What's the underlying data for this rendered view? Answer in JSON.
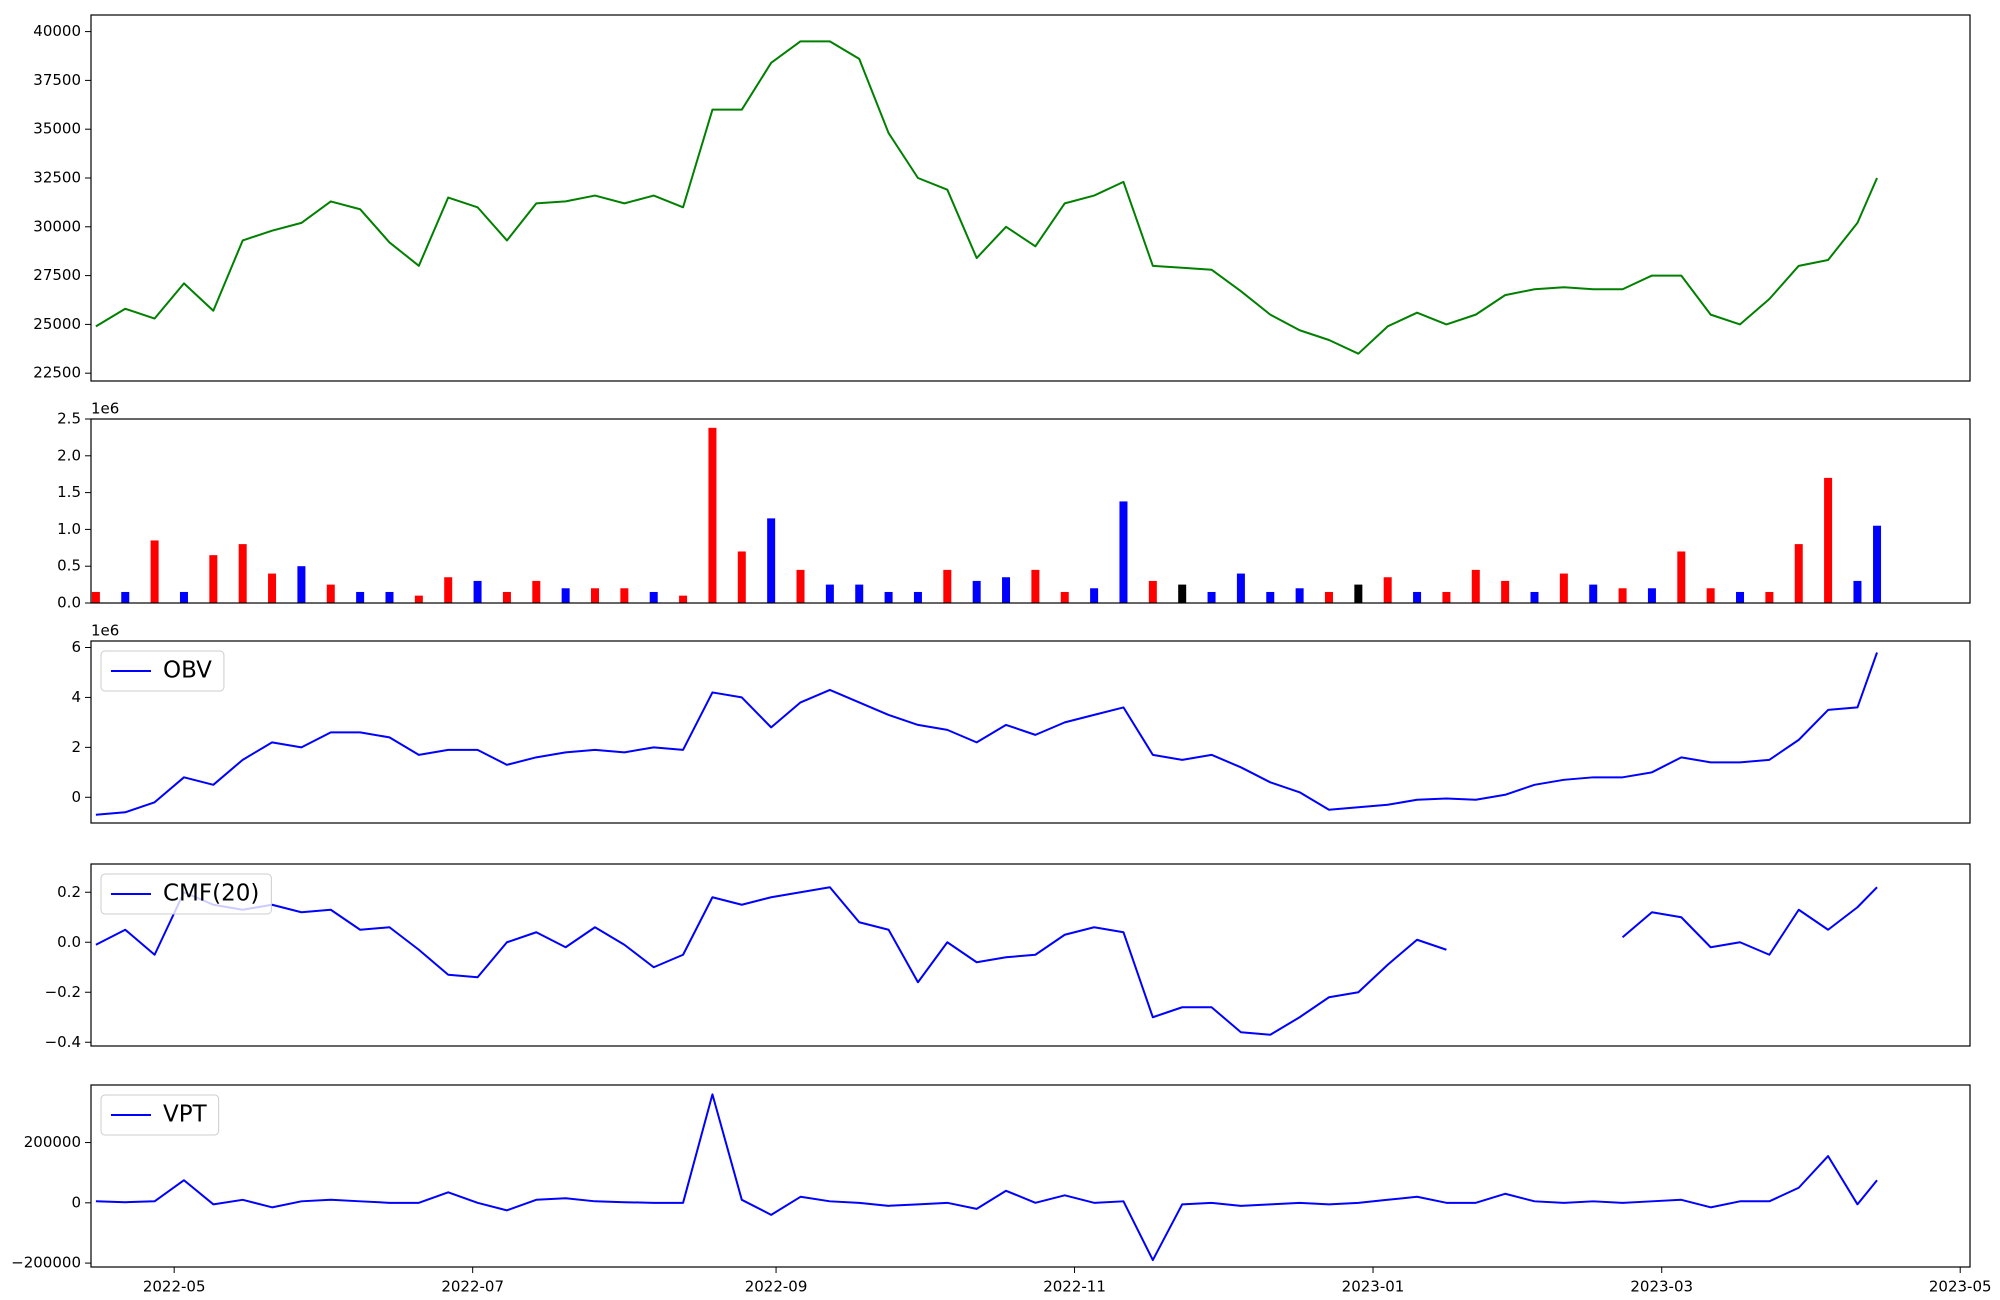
{
  "chart_data": [
    {
      "type": "line",
      "xlim": [
        19096,
        19480
      ],
      "x": [
        19097,
        19103,
        19109,
        19115,
        19121,
        19127,
        19133,
        19139,
        19145,
        19151,
        19157,
        19163,
        19169,
        19175,
        19181,
        19187,
        19193,
        19199,
        19205,
        19211,
        19217,
        19223,
        19229,
        19235,
        19241,
        19247,
        19253,
        19259,
        19265,
        19271,
        19277,
        19283,
        19289,
        19295,
        19301,
        19307,
        19313,
        19319,
        19325,
        19331,
        19337,
        19343,
        19349,
        19355,
        19361,
        19367,
        19373,
        19379,
        19385,
        19391,
        19397,
        19403,
        19409,
        19415,
        19421,
        19427,
        19433,
        19439,
        19445,
        19451,
        19457,
        19461
      ],
      "ylim": [
        22100,
        40850
      ],
      "yticks": [
        22500,
        25000,
        27500,
        30000,
        32500,
        35000,
        37500,
        40000
      ],
      "series": [
        {
          "color": "#008000",
          "values": [
            24900,
            25800,
            25300,
            27100,
            25700,
            29300,
            29800,
            30200,
            31300,
            30900,
            29200,
            28000,
            31500,
            31000,
            29300,
            31200,
            31300,
            31600,
            31200,
            31600,
            31000,
            36000,
            36000,
            38400,
            39500,
            39500,
            38600,
            34800,
            32500,
            31900,
            28400,
            30000,
            29000,
            31200,
            31600,
            32300,
            28000,
            27900,
            27800,
            26700,
            25500,
            24700,
            24200,
            23500,
            24900,
            25600,
            25000,
            25500,
            26500,
            26800,
            26900,
            26800,
            26800,
            27500,
            27500,
            25500,
            25000,
            26300,
            28000,
            28300,
            30200,
            32500
          ]
        }
      ]
    },
    {
      "type": "bar",
      "xlim": [
        19096,
        19480
      ],
      "x": [
        19097,
        19103,
        19109,
        19115,
        19121,
        19127,
        19133,
        19139,
        19145,
        19151,
        19157,
        19163,
        19169,
        19175,
        19181,
        19187,
        19193,
        19199,
        19205,
        19211,
        19217,
        19223,
        19229,
        19235,
        19241,
        19247,
        19253,
        19259,
        19265,
        19271,
        19277,
        19283,
        19289,
        19295,
        19301,
        19307,
        19313,
        19319,
        19325,
        19331,
        19337,
        19343,
        19349,
        19355,
        19361,
        19367,
        19373,
        19379,
        19385,
        19391,
        19397,
        19403,
        19409,
        19415,
        19421,
        19427,
        19433,
        19439,
        19445,
        19451,
        19457,
        19461
      ],
      "ylim": [
        0,
        2.5
      ],
      "yticks": [
        {
          "value": 0,
          "label": "0.0"
        },
        0.5,
        {
          "value": 1,
          "label": "1.0"
        },
        1.5,
        {
          "value": 2,
          "label": "2.0"
        },
        2.5
      ],
      "y_offset_label": "1e6",
      "series": [
        {
          "values": [
            0.15,
            0.15,
            0.85,
            0.15,
            0.65,
            0.8,
            0.4,
            0.5,
            0.25,
            0.15,
            0.15,
            0.1,
            0.35,
            0.3,
            0.15,
            0.3,
            0.2,
            0.2,
            0.2,
            0.15,
            0.1,
            2.38,
            0.7,
            1.15,
            0.45,
            0.25,
            0.25,
            0.15,
            0.15,
            0.45,
            0.3,
            0.35,
            0.45,
            0.15,
            0.2,
            1.38,
            0.3,
            0.25,
            0.15,
            0.4,
            0.15,
            0.2,
            0.15,
            0.25,
            0.35,
            0.15,
            0.15,
            0.45,
            0.3,
            0.15,
            0.4,
            0.25,
            0.2,
            0.2,
            0.7,
            0.2,
            0.15,
            0.15,
            0.8,
            1.7,
            0.3,
            1.05
          ],
          "colors": [
            "#ff0000",
            "#0000ff",
            "#ff0000",
            "#0000ff",
            "#ff0000",
            "#ff0000",
            "#ff0000",
            "#0000ff",
            "#ff0000",
            "#0000ff",
            "#0000ff",
            "#ff0000",
            "#ff0000",
            "#0000ff",
            "#ff0000",
            "#ff0000",
            "#0000ff",
            "#ff0000",
            "#ff0000",
            "#0000ff",
            "#ff0000",
            "#ff0000",
            "#ff0000",
            "#0000ff",
            "#ff0000",
            "#0000ff",
            "#0000ff",
            "#0000ff",
            "#0000ff",
            "#ff0000",
            "#0000ff",
            "#0000ff",
            "#ff0000",
            "#ff0000",
            "#0000ff",
            "#0000ff",
            "#ff0000",
            "#000000",
            "#0000ff",
            "#0000ff",
            "#0000ff",
            "#0000ff",
            "#ff0000",
            "#000000",
            "#ff0000",
            "#0000ff",
            "#ff0000",
            "#ff0000",
            "#ff0000",
            "#0000ff",
            "#ff0000",
            "#0000ff",
            "#ff0000",
            "#0000ff",
            "#ff0000",
            "#ff0000",
            "#0000ff",
            "#ff0000",
            "#ff0000",
            "#ff0000",
            "#0000ff",
            "#0000ff"
          ]
        }
      ]
    },
    {
      "type": "line",
      "xlim": [
        19096,
        19480
      ],
      "x": [
        19097,
        19103,
        19109,
        19115,
        19121,
        19127,
        19133,
        19139,
        19145,
        19151,
        19157,
        19163,
        19169,
        19175,
        19181,
        19187,
        19193,
        19199,
        19205,
        19211,
        19217,
        19223,
        19229,
        19235,
        19241,
        19247,
        19253,
        19259,
        19265,
        19271,
        19277,
        19283,
        19289,
        19295,
        19301,
        19307,
        19313,
        19319,
        19325,
        19331,
        19337,
        19343,
        19349,
        19355,
        19361,
        19367,
        19373,
        19379,
        19385,
        19391,
        19397,
        19403,
        19409,
        19415,
        19421,
        19427,
        19433,
        19439,
        19445,
        19451,
        19457,
        19461
      ],
      "ylim": [
        -1.03,
        6.26
      ],
      "yticks": [
        0,
        2,
        4,
        6
      ],
      "y_offset_label": "1e6",
      "legend": "upper left",
      "series": [
        {
          "name": "OBV",
          "color": "#0000ff",
          "values": [
            -0.7,
            -0.6,
            -0.2,
            0.8,
            0.5,
            1.5,
            2.2,
            2.0,
            2.6,
            2.6,
            2.4,
            1.7,
            1.9,
            1.9,
            1.3,
            1.6,
            1.8,
            1.9,
            1.8,
            2.0,
            1.9,
            4.2,
            4.0,
            2.8,
            3.8,
            4.3,
            3.8,
            3.3,
            2.9,
            2.7,
            2.2,
            2.9,
            2.5,
            3.0,
            3.3,
            3.6,
            1.7,
            1.5,
            1.7,
            1.2,
            0.6,
            0.2,
            -0.5,
            -0.4,
            -0.3,
            -0.1,
            -0.05,
            -0.1,
            0.1,
            0.5,
            0.7,
            0.8,
            0.8,
            1.0,
            1.6,
            1.4,
            1.4,
            1.5,
            2.3,
            3.5,
            3.6,
            5.8
          ]
        }
      ]
    },
    {
      "type": "line",
      "xlim": [
        19096,
        19480
      ],
      "x": [
        19097,
        19103,
        19109,
        19115,
        19121,
        19127,
        19133,
        19139,
        19145,
        19151,
        19157,
        19163,
        19169,
        19175,
        19181,
        19187,
        19193,
        19199,
        19205,
        19211,
        19217,
        19223,
        19229,
        19235,
        19241,
        19247,
        19253,
        19259,
        19265,
        19271,
        19277,
        19283,
        19289,
        19295,
        19301,
        19307,
        19313,
        19319,
        19325,
        19331,
        19337,
        19343,
        19349,
        19355,
        19361,
        19367,
        19373,
        19379,
        19385,
        19391,
        19397,
        19403,
        19409,
        19415,
        19421,
        19427,
        19433,
        19439,
        19445,
        19451,
        19457,
        19461
      ],
      "ylim": [
        -0.415,
        0.313
      ],
      "yticks": [
        {
          "value": -0.4,
          "label": "−0.4"
        },
        {
          "value": -0.2,
          "label": "−0.2"
        },
        {
          "value": 0,
          "label": "0.0"
        },
        0.2
      ],
      "legend": "upper left",
      "series": [
        {
          "name": "CMF(20)",
          "color": "#0000ff",
          "values": [
            -0.01,
            0.05,
            -0.05,
            0.2,
            0.15,
            0.13,
            0.15,
            0.12,
            0.13,
            0.05,
            0.06,
            -0.03,
            -0.13,
            -0.14,
            0.0,
            0.04,
            -0.02,
            0.06,
            -0.01,
            -0.1,
            -0.05,
            0.18,
            0.15,
            0.18,
            0.2,
            0.22,
            0.08,
            0.05,
            -0.16,
            0.0,
            -0.08,
            -0.06,
            -0.05,
            0.03,
            0.06,
            0.04,
            -0.3,
            -0.26,
            -0.26,
            -0.36,
            -0.37,
            -0.3,
            -0.22,
            -0.2,
            -0.09,
            0.01,
            -0.03,
            null,
            null,
            null,
            null,
            null,
            0.02,
            0.12,
            0.1,
            -0.02,
            0.0,
            -0.05,
            0.13,
            0.05,
            0.14,
            0.22
          ]
        }
      ]
    },
    {
      "type": "line",
      "xlim": [
        19096,
        19480
      ],
      "xticks": [
        {
          "value": 19113,
          "label": "2022-05"
        },
        {
          "value": 19174,
          "label": "2022-07"
        },
        {
          "value": 19236,
          "label": "2022-09"
        },
        {
          "value": 19297,
          "label": "2022-11"
        },
        {
          "value": 19358,
          "label": "2023-01"
        },
        {
          "value": 19417,
          "label": "2023-03"
        },
        {
          "value": 19478,
          "label": "2023-05"
        }
      ],
      "x": [
        19097,
        19103,
        19109,
        19115,
        19121,
        19127,
        19133,
        19139,
        19145,
        19151,
        19157,
        19163,
        19169,
        19175,
        19181,
        19187,
        19193,
        19199,
        19205,
        19211,
        19217,
        19223,
        19229,
        19235,
        19241,
        19247,
        19253,
        19259,
        19265,
        19271,
        19277,
        19283,
        19289,
        19295,
        19301,
        19307,
        19313,
        19319,
        19325,
        19331,
        19337,
        19343,
        19349,
        19355,
        19361,
        19367,
        19373,
        19379,
        19385,
        19391,
        19397,
        19403,
        19409,
        19415,
        19421,
        19427,
        19433,
        19439,
        19445,
        19451,
        19457,
        19461
      ],
      "ylim": [
        -213000,
        391000
      ],
      "yticks": [
        {
          "value": -200000,
          "label": "−200000"
        },
        0,
        200000
      ],
      "legend": "upper left",
      "series": [
        {
          "name": "VPT",
          "color": "#0000ff",
          "values": [
            5000,
            2000,
            5000,
            75000,
            -5000,
            10000,
            -15000,
            5000,
            10000,
            5000,
            0,
            0,
            35000,
            0,
            -25000,
            10000,
            15000,
            5000,
            2000,
            0,
            0,
            360000,
            10000,
            -40000,
            20000,
            5000,
            0,
            -10000,
            -5000,
            0,
            -20000,
            40000,
            0,
            25000,
            0,
            5000,
            -190000,
            -5000,
            0,
            -10000,
            -5000,
            0,
            -5000,
            0,
            10000,
            20000,
            0,
            0,
            30000,
            5000,
            0,
            5000,
            0,
            5000,
            10000,
            -15000,
            5000,
            5000,
            50000,
            155000,
            -5000,
            75000
          ]
        }
      ]
    }
  ]
}
